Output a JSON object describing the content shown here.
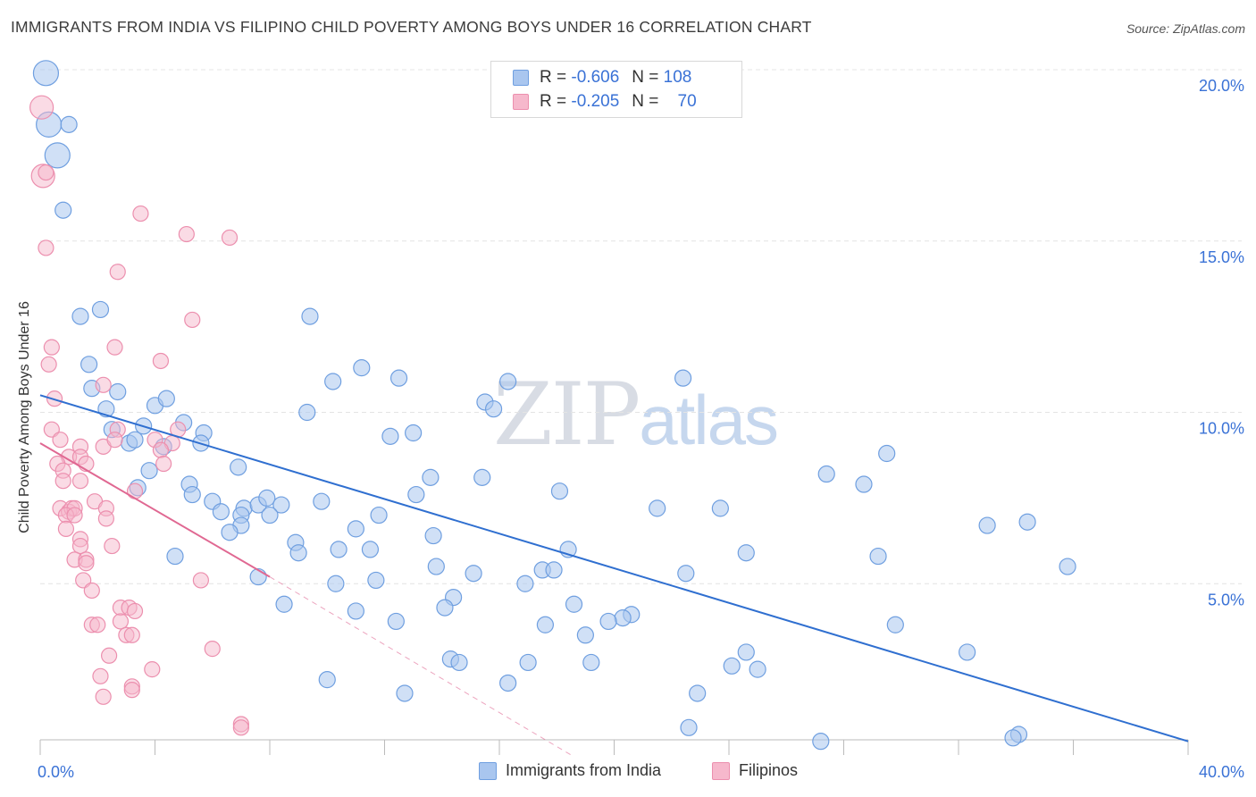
{
  "title": "IMMIGRANTS FROM INDIA VS FILIPINO CHILD POVERTY AMONG BOYS UNDER 16 CORRELATION CHART",
  "source": "Source: ZipAtlas.com",
  "watermark": {
    "zip": "ZIP",
    "atlas": "atlas"
  },
  "legend": {
    "india": {
      "r_label": "R = ",
      "r_value": "-0.606",
      "n_label": "N = ",
      "n_value": "108"
    },
    "filipino": {
      "r_label": "R = ",
      "r_value": "-0.205",
      "n_label": "N = ",
      "n_value": "70"
    }
  },
  "colors": {
    "india_fill": "#a9c6ef",
    "india_stroke": "#6f9fe0",
    "india_line": "#2f6fd0",
    "filipino_fill": "#f6b8cc",
    "filipino_stroke": "#ec8fae",
    "filipino_line": "#e06892",
    "tick_label": "#3a72d6",
    "grid": "#e4e4e4"
  },
  "chart_data": {
    "type": "scatter",
    "title": "IMMIGRANTS FROM INDIA VS FILIPINO CHILD POVERTY AMONG BOYS UNDER 16 CORRELATION CHART",
    "xlabel": "",
    "ylabel": "Child Poverty Among Boys Under 16",
    "xlim": [
      0,
      40
    ],
    "ylim": [
      0,
      20.5
    ],
    "x_tick_labels": [
      "0.0%",
      "40.0%"
    ],
    "y_ticks": [
      5,
      10,
      15,
      20
    ],
    "y_tick_labels": [
      "5.0%",
      "10.0%",
      "15.0%",
      "20.0%"
    ],
    "series": [
      {
        "name": "Immigrants from India",
        "r": -0.606,
        "n": 108,
        "trend": {
          "x0": 0,
          "y0": 10.5,
          "x1": 40,
          "y1": 0.4
        },
        "points": [
          {
            "x": 0.2,
            "y": 19.9,
            "s": "l"
          },
          {
            "x": 0.3,
            "y": 18.4,
            "s": "l"
          },
          {
            "x": 1.0,
            "y": 18.4
          },
          {
            "x": 0.6,
            "y": 17.5,
            "s": "l"
          },
          {
            "x": 0.8,
            "y": 15.9
          },
          {
            "x": 1.4,
            "y": 12.8
          },
          {
            "x": 2.1,
            "y": 13.0
          },
          {
            "x": 9.4,
            "y": 12.8
          },
          {
            "x": 1.7,
            "y": 11.4
          },
          {
            "x": 11.2,
            "y": 11.3
          },
          {
            "x": 12.5,
            "y": 11.0
          },
          {
            "x": 10.2,
            "y": 10.9
          },
          {
            "x": 1.8,
            "y": 10.7
          },
          {
            "x": 2.7,
            "y": 10.6
          },
          {
            "x": 16.3,
            "y": 10.9
          },
          {
            "x": 2.3,
            "y": 10.1
          },
          {
            "x": 4.0,
            "y": 10.2
          },
          {
            "x": 4.4,
            "y": 10.4
          },
          {
            "x": 9.3,
            "y": 10.0
          },
          {
            "x": 15.5,
            "y": 10.3
          },
          {
            "x": 15.8,
            "y": 10.1
          },
          {
            "x": 5.0,
            "y": 9.7
          },
          {
            "x": 3.6,
            "y": 9.6
          },
          {
            "x": 2.5,
            "y": 9.5
          },
          {
            "x": 5.7,
            "y": 9.4
          },
          {
            "x": 12.2,
            "y": 9.3
          },
          {
            "x": 13.0,
            "y": 9.4
          },
          {
            "x": 3.1,
            "y": 9.1
          },
          {
            "x": 3.3,
            "y": 9.2
          },
          {
            "x": 4.3,
            "y": 9.0
          },
          {
            "x": 5.6,
            "y": 9.1
          },
          {
            "x": 29.5,
            "y": 8.8
          },
          {
            "x": 3.8,
            "y": 8.3
          },
          {
            "x": 6.9,
            "y": 8.4
          },
          {
            "x": 13.6,
            "y": 8.1
          },
          {
            "x": 15.4,
            "y": 8.1
          },
          {
            "x": 27.4,
            "y": 8.2
          },
          {
            "x": 3.4,
            "y": 7.8
          },
          {
            "x": 5.2,
            "y": 7.9
          },
          {
            "x": 28.7,
            "y": 7.9
          },
          {
            "x": 5.3,
            "y": 7.6
          },
          {
            "x": 6.0,
            "y": 7.4
          },
          {
            "x": 13.1,
            "y": 7.6
          },
          {
            "x": 18.1,
            "y": 7.7
          },
          {
            "x": 6.3,
            "y": 7.1
          },
          {
            "x": 7.1,
            "y": 7.2
          },
          {
            "x": 7.6,
            "y": 7.3
          },
          {
            "x": 7.9,
            "y": 7.5
          },
          {
            "x": 8.4,
            "y": 7.3
          },
          {
            "x": 9.8,
            "y": 7.4
          },
          {
            "x": 21.5,
            "y": 7.2
          },
          {
            "x": 23.7,
            "y": 7.2
          },
          {
            "x": 7.0,
            "y": 7.0
          },
          {
            "x": 8.0,
            "y": 7.0
          },
          {
            "x": 11.8,
            "y": 7.0
          },
          {
            "x": 7.0,
            "y": 6.7
          },
          {
            "x": 34.4,
            "y": 6.8
          },
          {
            "x": 33.0,
            "y": 6.7
          },
          {
            "x": 6.6,
            "y": 6.5
          },
          {
            "x": 11.0,
            "y": 6.6
          },
          {
            "x": 13.7,
            "y": 6.4
          },
          {
            "x": 8.9,
            "y": 6.2
          },
          {
            "x": 10.4,
            "y": 6.0
          },
          {
            "x": 11.5,
            "y": 6.0
          },
          {
            "x": 18.4,
            "y": 6.0
          },
          {
            "x": 4.7,
            "y": 5.8
          },
          {
            "x": 9.0,
            "y": 5.9
          },
          {
            "x": 24.6,
            "y": 5.9
          },
          {
            "x": 29.2,
            "y": 5.8
          },
          {
            "x": 35.8,
            "y": 5.5
          },
          {
            "x": 13.8,
            "y": 5.5
          },
          {
            "x": 17.5,
            "y": 5.4
          },
          {
            "x": 17.9,
            "y": 5.4
          },
          {
            "x": 15.1,
            "y": 5.3
          },
          {
            "x": 22.5,
            "y": 5.3
          },
          {
            "x": 7.6,
            "y": 5.2
          },
          {
            "x": 11.7,
            "y": 5.1
          },
          {
            "x": 10.3,
            "y": 5.0
          },
          {
            "x": 16.9,
            "y": 5.0
          },
          {
            "x": 14.4,
            "y": 4.6
          },
          {
            "x": 8.5,
            "y": 4.4
          },
          {
            "x": 14.1,
            "y": 4.3
          },
          {
            "x": 11.0,
            "y": 4.2
          },
          {
            "x": 18.6,
            "y": 4.4
          },
          {
            "x": 20.6,
            "y": 4.1
          },
          {
            "x": 20.3,
            "y": 4.0
          },
          {
            "x": 19.8,
            "y": 3.9
          },
          {
            "x": 12.4,
            "y": 3.9
          },
          {
            "x": 17.6,
            "y": 3.8
          },
          {
            "x": 29.8,
            "y": 3.8
          },
          {
            "x": 19.0,
            "y": 3.5
          },
          {
            "x": 24.6,
            "y": 3.0
          },
          {
            "x": 14.3,
            "y": 2.8
          },
          {
            "x": 14.6,
            "y": 2.7
          },
          {
            "x": 17.0,
            "y": 2.7
          },
          {
            "x": 19.2,
            "y": 2.7
          },
          {
            "x": 24.1,
            "y": 2.6
          },
          {
            "x": 25.0,
            "y": 2.5
          },
          {
            "x": 32.3,
            "y": 3.0
          },
          {
            "x": 10.0,
            "y": 2.2
          },
          {
            "x": 16.3,
            "y": 2.1
          },
          {
            "x": 12.7,
            "y": 1.8
          },
          {
            "x": 22.9,
            "y": 1.8
          },
          {
            "x": 22.6,
            "y": 0.8
          },
          {
            "x": 27.2,
            "y": 0.4
          },
          {
            "x": 34.1,
            "y": 0.6
          },
          {
            "x": 33.9,
            "y": 0.5
          },
          {
            "x": 22.4,
            "y": 11.0
          }
        ]
      },
      {
        "name": "Filipinos",
        "r": -0.205,
        "n": 70,
        "trend": {
          "x0": 0,
          "y0": 9.1,
          "x1": 8.0,
          "y1": 5.2
        },
        "trend_ext": {
          "x0": 8.0,
          "y0": 5.2,
          "x1": 18.5,
          "y1": 0.0
        },
        "points": [
          {
            "x": 0.05,
            "y": 18.9,
            "s": "l"
          },
          {
            "x": 0.1,
            "y": 16.9,
            "s": "l"
          },
          {
            "x": 0.2,
            "y": 17.0
          },
          {
            "x": 0.2,
            "y": 14.8
          },
          {
            "x": 3.5,
            "y": 15.8
          },
          {
            "x": 5.1,
            "y": 15.2
          },
          {
            "x": 6.6,
            "y": 15.1
          },
          {
            "x": 2.7,
            "y": 14.1
          },
          {
            "x": 5.3,
            "y": 12.7
          },
          {
            "x": 0.4,
            "y": 11.9
          },
          {
            "x": 2.6,
            "y": 11.9
          },
          {
            "x": 0.3,
            "y": 11.4
          },
          {
            "x": 4.2,
            "y": 11.5
          },
          {
            "x": 2.2,
            "y": 10.8
          },
          {
            "x": 0.5,
            "y": 10.4
          },
          {
            "x": 0.4,
            "y": 9.5
          },
          {
            "x": 2.7,
            "y": 9.5
          },
          {
            "x": 0.7,
            "y": 9.2
          },
          {
            "x": 1.4,
            "y": 9.0
          },
          {
            "x": 2.2,
            "y": 9.0
          },
          {
            "x": 2.6,
            "y": 9.2
          },
          {
            "x": 4.0,
            "y": 9.2
          },
          {
            "x": 4.6,
            "y": 9.1
          },
          {
            "x": 4.8,
            "y": 9.5
          },
          {
            "x": 4.2,
            "y": 8.9
          },
          {
            "x": 1.0,
            "y": 8.7
          },
          {
            "x": 1.4,
            "y": 8.7
          },
          {
            "x": 0.6,
            "y": 8.5
          },
          {
            "x": 0.8,
            "y": 8.3
          },
          {
            "x": 1.6,
            "y": 8.5
          },
          {
            "x": 4.3,
            "y": 8.5
          },
          {
            "x": 0.8,
            "y": 8.0
          },
          {
            "x": 1.4,
            "y": 8.0
          },
          {
            "x": 3.3,
            "y": 7.7
          },
          {
            "x": 0.7,
            "y": 7.2
          },
          {
            "x": 1.0,
            "y": 7.1
          },
          {
            "x": 1.1,
            "y": 7.2
          },
          {
            "x": 1.2,
            "y": 7.2
          },
          {
            "x": 1.9,
            "y": 7.4
          },
          {
            "x": 2.3,
            "y": 7.2
          },
          {
            "x": 0.9,
            "y": 7.0
          },
          {
            "x": 1.2,
            "y": 7.0
          },
          {
            "x": 2.3,
            "y": 6.9
          },
          {
            "x": 0.9,
            "y": 6.6
          },
          {
            "x": 1.4,
            "y": 6.3
          },
          {
            "x": 1.4,
            "y": 6.1
          },
          {
            "x": 2.5,
            "y": 6.1
          },
          {
            "x": 1.2,
            "y": 5.7
          },
          {
            "x": 1.6,
            "y": 5.7
          },
          {
            "x": 1.6,
            "y": 5.6
          },
          {
            "x": 1.5,
            "y": 5.1
          },
          {
            "x": 5.6,
            "y": 5.1
          },
          {
            "x": 1.8,
            "y": 4.8
          },
          {
            "x": 2.8,
            "y": 4.3
          },
          {
            "x": 3.1,
            "y": 4.3
          },
          {
            "x": 3.3,
            "y": 4.2
          },
          {
            "x": 2.8,
            "y": 3.9
          },
          {
            "x": 1.8,
            "y": 3.8
          },
          {
            "x": 2.0,
            "y": 3.8
          },
          {
            "x": 3.0,
            "y": 3.5
          },
          {
            "x": 3.2,
            "y": 3.5
          },
          {
            "x": 6.0,
            "y": 3.1
          },
          {
            "x": 2.4,
            "y": 2.9
          },
          {
            "x": 3.9,
            "y": 2.5
          },
          {
            "x": 2.1,
            "y": 2.3
          },
          {
            "x": 3.2,
            "y": 2.0
          },
          {
            "x": 3.2,
            "y": 1.9
          },
          {
            "x": 2.2,
            "y": 1.7
          },
          {
            "x": 7.0,
            "y": 0.9
          },
          {
            "x": 7.0,
            "y": 0.8
          }
        ]
      }
    ]
  },
  "bottom_legend": {
    "india": "Immigrants from India",
    "filipino": "Filipinos"
  }
}
